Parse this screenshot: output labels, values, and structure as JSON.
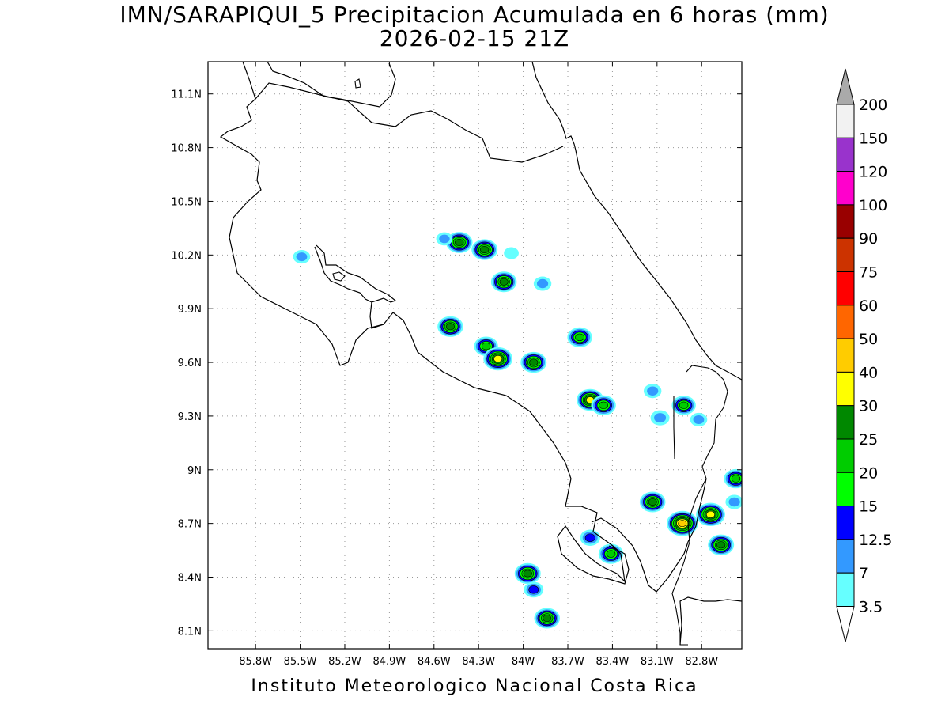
{
  "title": {
    "line1": "IMN/SARAPIQUI_5 Precipitacion Acumulada en 6 horas (mm)",
    "line2": "2026-02-15 21Z"
  },
  "footer": "Instituto Meteorologico Nacional Costa Rica",
  "chart_data": {
    "type": "heatmap",
    "variable": "Precipitacion Acumulada en 6 horas (mm)",
    "x_ticks": [
      "85.8W",
      "85.5W",
      "85.2W",
      "84.9W",
      "84.6W",
      "84.3W",
      "84W",
      "83.7W",
      "83.4W",
      "83.1W",
      "82.8W"
    ],
    "y_ticks": [
      "11.1N",
      "10.8N",
      "10.5N",
      "10.2N",
      "9.9N",
      "9.6N",
      "9.3N",
      "9N",
      "8.7N",
      "8.4N",
      "8.1N"
    ],
    "lon_range": [
      -86.12,
      -82.53
    ],
    "lat_range": [
      8.0,
      11.28
    ],
    "grid": true,
    "colorbar": {
      "position": "right",
      "levels": [
        "3.5",
        "7",
        "12.5",
        "15",
        "20",
        "25",
        "30",
        "40",
        "50",
        "60",
        "75",
        "90",
        "100",
        "120",
        "150",
        "200"
      ],
      "colors": [
        "#ffffff",
        "#66ffff",
        "#3399ff",
        "#0000ff",
        "#00ff00",
        "#00cc00",
        "#008800",
        "#ffff00",
        "#ffcc00",
        "#ff6600",
        "#ff0000",
        "#cc3300",
        "#990000",
        "#ff00cc",
        "#9933cc",
        "#f2f2f2",
        "#aaaaaa"
      ]
    },
    "rain_cells": [
      {
        "lon": -85.49,
        "lat": 10.19,
        "max_mm": 9
      },
      {
        "lon": -84.43,
        "lat": 10.27,
        "max_mm": 28
      },
      {
        "lon": -84.53,
        "lat": 10.29,
        "max_mm": 8
      },
      {
        "lon": -84.26,
        "lat": 10.23,
        "max_mm": 27
      },
      {
        "lon": -84.13,
        "lat": 10.05,
        "max_mm": 26
      },
      {
        "lon": -84.08,
        "lat": 10.21,
        "max_mm": 6
      },
      {
        "lon": -84.49,
        "lat": 9.8,
        "max_mm": 26
      },
      {
        "lon": -84.25,
        "lat": 9.69,
        "max_mm": 22
      },
      {
        "lon": -84.17,
        "lat": 9.62,
        "max_mm": 35
      },
      {
        "lon": -83.93,
        "lat": 9.6,
        "max_mm": 27
      },
      {
        "lon": -83.87,
        "lat": 10.04,
        "max_mm": 10
      },
      {
        "lon": -83.62,
        "lat": 9.74,
        "max_mm": 24
      },
      {
        "lon": -83.55,
        "lat": 9.39,
        "max_mm": 30
      },
      {
        "lon": -83.46,
        "lat": 9.36,
        "max_mm": 24
      },
      {
        "lon": -83.13,
        "lat": 9.44,
        "max_mm": 10
      },
      {
        "lon": -83.08,
        "lat": 9.29,
        "max_mm": 12
      },
      {
        "lon": -82.92,
        "lat": 9.36,
        "max_mm": 22
      },
      {
        "lon": -82.82,
        "lat": 9.28,
        "max_mm": 9
      },
      {
        "lon": -83.97,
        "lat": 8.42,
        "max_mm": 27
      },
      {
        "lon": -83.93,
        "lat": 8.33,
        "max_mm": 13
      },
      {
        "lon": -83.84,
        "lat": 8.17,
        "max_mm": 26
      },
      {
        "lon": -83.55,
        "lat": 8.62,
        "max_mm": 14
      },
      {
        "lon": -83.41,
        "lat": 8.53,
        "max_mm": 24
      },
      {
        "lon": -83.13,
        "lat": 8.82,
        "max_mm": 26
      },
      {
        "lon": -82.93,
        "lat": 8.7,
        "max_mm": 42
      },
      {
        "lon": -82.74,
        "lat": 8.75,
        "max_mm": 35
      },
      {
        "lon": -82.67,
        "lat": 8.58,
        "max_mm": 27
      },
      {
        "lon": -82.57,
        "lat": 8.95,
        "max_mm": 22
      },
      {
        "lon": -82.58,
        "lat": 8.82,
        "max_mm": 10
      }
    ]
  }
}
